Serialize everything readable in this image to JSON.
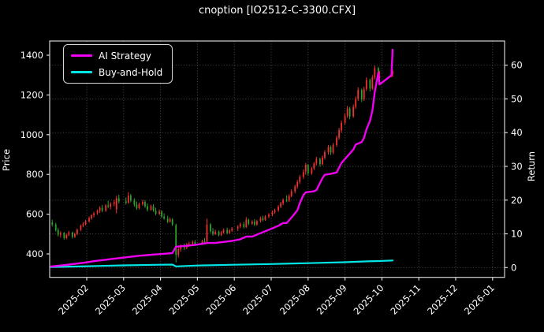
{
  "title": "cnoption [IO2512-C-3300.CFX]",
  "axis_labels": {
    "left": "Price",
    "right": "Return"
  },
  "legend": [
    {
      "label": "AI Strategy",
      "color": "#f000f0"
    },
    {
      "label": "Buy-and-Hold",
      "color": "#00e5e5"
    }
  ],
  "colors": {
    "background": "#000000",
    "text": "#ffffff",
    "grid": "#555555",
    "spine": "#e6e6e6",
    "candle_up": "#f23030",
    "candle_down": "#2ca42c",
    "ai_strategy": "#f000f0",
    "buy_and_hold": "#00e5e5"
  },
  "chart_data": {
    "type": "candlestick+line",
    "title": "cnoption [IO2512-C-3300.CFX]",
    "grid": {
      "horizontal": "right-axis-ticks",
      "vertical": "month-ticks",
      "style": "dotted"
    },
    "legend_position": "upper-left",
    "x_axis": {
      "tick_labels": [
        "2025-02",
        "2025-03",
        "2025-04",
        "2025-05",
        "2025-06",
        "2025-07",
        "2025-08",
        "2025-09",
        "2025-10",
        "2025-11",
        "2025-12",
        "2026-01"
      ],
      "tick_rotation_deg": 45,
      "range": [
        "2025-01-01",
        "2026-01-11"
      ]
    },
    "y_left": {
      "label": "Price",
      "ticks": [
        400,
        600,
        800,
        1000,
        1200,
        1400
      ],
      "range": [
        280,
        1470
      ]
    },
    "y_right": {
      "label": "Return",
      "ticks": [
        0,
        10,
        20,
        30,
        40,
        50,
        60
      ],
      "range": [
        -3,
        67
      ]
    },
    "candles_format": [
      "date",
      "open",
      "high",
      "low",
      "close"
    ],
    "candles": [
      [
        "2025-01-03",
        558,
        572,
        538,
        548
      ],
      [
        "2025-01-06",
        548,
        556,
        512,
        520
      ],
      [
        "2025-01-08",
        520,
        530,
        488,
        496
      ],
      [
        "2025-01-10",
        496,
        514,
        482,
        506
      ],
      [
        "2025-01-13",
        506,
        510,
        472,
        480
      ],
      [
        "2025-01-15",
        480,
        502,
        474,
        496
      ],
      [
        "2025-01-17",
        496,
        516,
        490,
        508
      ],
      [
        "2025-01-20",
        508,
        512,
        478,
        486
      ],
      [
        "2025-01-22",
        486,
        506,
        480,
        500
      ],
      [
        "2025-01-24",
        500,
        528,
        494,
        522
      ],
      [
        "2025-01-27",
        522,
        548,
        515,
        542
      ],
      [
        "2025-01-29",
        542,
        560,
        534,
        550
      ],
      [
        "2025-01-31",
        550,
        572,
        544,
        564
      ],
      [
        "2025-02-03",
        564,
        588,
        558,
        580
      ],
      [
        "2025-02-05",
        580,
        600,
        572,
        594
      ],
      [
        "2025-02-07",
        594,
        612,
        584,
        604
      ],
      [
        "2025-02-10",
        604,
        624,
        596,
        618
      ],
      [
        "2025-02-12",
        618,
        640,
        606,
        632
      ],
      [
        "2025-02-14",
        632,
        646,
        610,
        618
      ],
      [
        "2025-02-17",
        618,
        652,
        612,
        644
      ],
      [
        "2025-02-19",
        644,
        668,
        630,
        638
      ],
      [
        "2025-02-21",
        638,
        660,
        624,
        652
      ],
      [
        "2025-02-24",
        652,
        672,
        640,
        660
      ],
      [
        "2025-02-26",
        624,
        692,
        604,
        680
      ],
      [
        "2025-02-28",
        680,
        698,
        654,
        664
      ],
      [
        "2025-03-03",
        664,
        684,
        648,
        658
      ],
      [
        "2025-03-05",
        658,
        711,
        652,
        694
      ],
      [
        "2025-03-07",
        694,
        702,
        660,
        668
      ],
      [
        "2025-03-10",
        668,
        680,
        638,
        648
      ],
      [
        "2025-03-12",
        648,
        664,
        622,
        630
      ],
      [
        "2025-03-14",
        630,
        658,
        624,
        650
      ],
      [
        "2025-03-17",
        650,
        672,
        642,
        662
      ],
      [
        "2025-03-19",
        662,
        670,
        632,
        640
      ],
      [
        "2025-03-21",
        640,
        654,
        614,
        622
      ],
      [
        "2025-03-24",
        622,
        648,
        618,
        640
      ],
      [
        "2025-03-26",
        640,
        650,
        612,
        618
      ],
      [
        "2025-03-28",
        618,
        632,
        595,
        602
      ],
      [
        "2025-03-31",
        602,
        624,
        596,
        614
      ],
      [
        "2025-04-02",
        614,
        620,
        580,
        588
      ],
      [
        "2025-04-04",
        588,
        604,
        572,
        578
      ],
      [
        "2025-04-07",
        578,
        592,
        555,
        562
      ],
      [
        "2025-04-09",
        562,
        584,
        558,
        574
      ],
      [
        "2025-04-11",
        574,
        580,
        540,
        548
      ],
      [
        "2025-04-14",
        545,
        552,
        358,
        395
      ],
      [
        "2025-04-16",
        395,
        438,
        382,
        424
      ],
      [
        "2025-04-18",
        424,
        448,
        412,
        438
      ],
      [
        "2025-04-21",
        438,
        452,
        420,
        430
      ],
      [
        "2025-04-23",
        430,
        455,
        424,
        448
      ],
      [
        "2025-04-25",
        448,
        462,
        435,
        452
      ],
      [
        "2025-04-28",
        452,
        468,
        440,
        460
      ],
      [
        "2025-04-30",
        460,
        470,
        442,
        450
      ],
      [
        "2025-05-05",
        450,
        472,
        445,
        464
      ],
      [
        "2025-05-07",
        464,
        480,
        452,
        458
      ],
      [
        "2025-05-09",
        462,
        578,
        455,
        548
      ],
      [
        "2025-05-12",
        548,
        555,
        505,
        514
      ],
      [
        "2025-05-14",
        514,
        530,
        492,
        500
      ],
      [
        "2025-05-16",
        500,
        522,
        495,
        512
      ],
      [
        "2025-05-19",
        512,
        518,
        488,
        495
      ],
      [
        "2025-05-21",
        495,
        515,
        490,
        508
      ],
      [
        "2025-05-23",
        508,
        528,
        502,
        520
      ],
      [
        "2025-05-26",
        520,
        532,
        498,
        505
      ],
      [
        "2025-05-28",
        505,
        525,
        500,
        518
      ],
      [
        "2025-05-30",
        518,
        535,
        510,
        528
      ],
      [
        "2025-06-04",
        528,
        545,
        515,
        538
      ],
      [
        "2025-06-06",
        538,
        558,
        530,
        550
      ],
      [
        "2025-06-09",
        550,
        562,
        528,
        535
      ],
      [
        "2025-06-11",
        535,
        585,
        530,
        572
      ],
      [
        "2025-06-13",
        572,
        578,
        544,
        552
      ],
      [
        "2025-06-16",
        552,
        570,
        546,
        562
      ],
      [
        "2025-06-18",
        562,
        575,
        540,
        548
      ],
      [
        "2025-06-20",
        548,
        572,
        542,
        565
      ],
      [
        "2025-06-23",
        565,
        588,
        558,
        580
      ],
      [
        "2025-06-25",
        580,
        592,
        564,
        571
      ],
      [
        "2025-06-27",
        571,
        595,
        567,
        588
      ],
      [
        "2025-06-30",
        588,
        605,
        580,
        598
      ],
      [
        "2025-07-02",
        598,
        618,
        590,
        610
      ],
      [
        "2025-07-04",
        610,
        628,
        602,
        620
      ],
      [
        "2025-07-07",
        620,
        645,
        612,
        638
      ],
      [
        "2025-07-09",
        638,
        662,
        630,
        655
      ],
      [
        "2025-07-11",
        655,
        680,
        645,
        672
      ],
      [
        "2025-07-14",
        672,
        695,
        660,
        668
      ],
      [
        "2025-07-16",
        668,
        700,
        662,
        692
      ],
      [
        "2025-07-18",
        692,
        725,
        685,
        715
      ],
      [
        "2025-07-21",
        715,
        748,
        705,
        738
      ],
      [
        "2025-07-23",
        738,
        772,
        728,
        762
      ],
      [
        "2025-07-25",
        762,
        798,
        752,
        788
      ],
      [
        "2025-07-28",
        788,
        825,
        778,
        812
      ],
      [
        "2025-07-30",
        815,
        858,
        798,
        848
      ],
      [
        "2025-08-01",
        848,
        852,
        795,
        805
      ],
      [
        "2025-08-04",
        805,
        838,
        798,
        830
      ],
      [
        "2025-08-06",
        830,
        862,
        822,
        855
      ],
      [
        "2025-08-08",
        855,
        888,
        845,
        878
      ],
      [
        "2025-08-11",
        878,
        885,
        840,
        852
      ],
      [
        "2025-08-13",
        852,
        895,
        845,
        885
      ],
      [
        "2025-08-15",
        885,
        922,
        875,
        912
      ],
      [
        "2025-08-18",
        912,
        948,
        900,
        938
      ],
      [
        "2025-08-20",
        938,
        945,
        898,
        910
      ],
      [
        "2025-08-22",
        910,
        958,
        902,
        948
      ],
      [
        "2025-08-25",
        948,
        995,
        938,
        985
      ],
      [
        "2025-08-27",
        985,
        1035,
        975,
        1022
      ],
      [
        "2025-08-29",
        1022,
        1072,
        1010,
        1060
      ],
      [
        "2025-09-01",
        1060,
        1108,
        1048,
        1095
      ],
      [
        "2025-09-03",
        1095,
        1145,
        1085,
        1132
      ],
      [
        "2025-09-05",
        1132,
        1140,
        1078,
        1092
      ],
      [
        "2025-09-08",
        1092,
        1152,
        1085,
        1140
      ],
      [
        "2025-09-10",
        1140,
        1192,
        1130,
        1180
      ],
      [
        "2025-09-12",
        1180,
        1238,
        1170,
        1225
      ],
      [
        "2025-09-15",
        1225,
        1232,
        1165,
        1178
      ],
      [
        "2025-09-17",
        1178,
        1242,
        1170,
        1230
      ],
      [
        "2025-09-19",
        1230,
        1288,
        1220,
        1275
      ],
      [
        "2025-09-22",
        1275,
        1282,
        1218,
        1232
      ],
      [
        "2025-09-24",
        1232,
        1300,
        1225,
        1288
      ],
      [
        "2025-09-26",
        1288,
        1348,
        1278,
        1335
      ],
      [
        "2025-09-29",
        1335,
        1342,
        1272,
        1285
      ],
      [
        "2025-09-30",
        1285,
        1322,
        1270,
        1298
      ],
      [
        "2025-10-09",
        1298,
        1342,
        1290,
        1330
      ],
      [
        "2025-10-10",
        1305,
        1328,
        1290,
        1318
      ]
    ],
    "series": [
      {
        "name": "AI Strategy",
        "axis": "right",
        "color": "#f000f0",
        "linewidth": 2.4,
        "points": [
          [
            "2025-01-02",
            0.3
          ],
          [
            "2025-01-10",
            0.6
          ],
          [
            "2025-01-17",
            0.9
          ],
          [
            "2025-01-24",
            1.2
          ],
          [
            "2025-01-31",
            1.5
          ],
          [
            "2025-02-07",
            1.9
          ],
          [
            "2025-02-14",
            2.2
          ],
          [
            "2025-02-21",
            2.5
          ],
          [
            "2025-02-28",
            2.8
          ],
          [
            "2025-03-07",
            3.2
          ],
          [
            "2025-03-14",
            3.5
          ],
          [
            "2025-03-21",
            3.7
          ],
          [
            "2025-03-28",
            3.9
          ],
          [
            "2025-04-04",
            4.1
          ],
          [
            "2025-04-11",
            4.3
          ],
          [
            "2025-04-14",
            6.2
          ],
          [
            "2025-04-21",
            6.4
          ],
          [
            "2025-04-30",
            6.7
          ],
          [
            "2025-05-09",
            7.3
          ],
          [
            "2025-05-16",
            7.3
          ],
          [
            "2025-05-23",
            7.6
          ],
          [
            "2025-05-30",
            7.9
          ],
          [
            "2025-06-06",
            8.4
          ],
          [
            "2025-06-11",
            9.2
          ],
          [
            "2025-06-16",
            9.2
          ],
          [
            "2025-06-23",
            10.2
          ],
          [
            "2025-06-30",
            11.2
          ],
          [
            "2025-07-07",
            12.4
          ],
          [
            "2025-07-11",
            13.2
          ],
          [
            "2025-07-14",
            13.2
          ],
          [
            "2025-07-18",
            14.8
          ],
          [
            "2025-07-23",
            17.0
          ],
          [
            "2025-07-25",
            19.0
          ],
          [
            "2025-07-28",
            21.5
          ],
          [
            "2025-07-30",
            22.3
          ],
          [
            "2025-08-06",
            22.6
          ],
          [
            "2025-08-08",
            23.0
          ],
          [
            "2025-08-13",
            26.5
          ],
          [
            "2025-08-15",
            27.5
          ],
          [
            "2025-08-20",
            27.8
          ],
          [
            "2025-08-25",
            28.2
          ],
          [
            "2025-08-29",
            31.0
          ],
          [
            "2025-09-03",
            33.0
          ],
          [
            "2025-09-08",
            35.0
          ],
          [
            "2025-09-10",
            36.5
          ],
          [
            "2025-09-15",
            37.2
          ],
          [
            "2025-09-17",
            38.5
          ],
          [
            "2025-09-19",
            41.0
          ],
          [
            "2025-09-22",
            43.5
          ],
          [
            "2025-09-24",
            46.5
          ],
          [
            "2025-09-26",
            52.0
          ],
          [
            "2025-09-29",
            57.8
          ],
          [
            "2025-09-30",
            54.3
          ],
          [
            "2025-10-09",
            57.0
          ],
          [
            "2025-10-10",
            64.6
          ]
        ]
      },
      {
        "name": "Buy-and-Hold",
        "axis": "right",
        "color": "#00e5e5",
        "linewidth": 2.2,
        "points": [
          [
            "2025-01-02",
            0.15
          ],
          [
            "2025-02-01",
            0.4
          ],
          [
            "2025-03-01",
            0.65
          ],
          [
            "2025-04-01",
            0.85
          ],
          [
            "2025-04-11",
            0.9
          ],
          [
            "2025-04-14",
            0.35
          ],
          [
            "2025-05-01",
            0.6
          ],
          [
            "2025-06-01",
            0.85
          ],
          [
            "2025-07-01",
            1.05
          ],
          [
            "2025-08-01",
            1.3
          ],
          [
            "2025-09-01",
            1.6
          ],
          [
            "2025-09-20",
            1.85
          ],
          [
            "2025-09-30",
            1.95
          ],
          [
            "2025-10-10",
            2.1
          ]
        ]
      }
    ]
  }
}
